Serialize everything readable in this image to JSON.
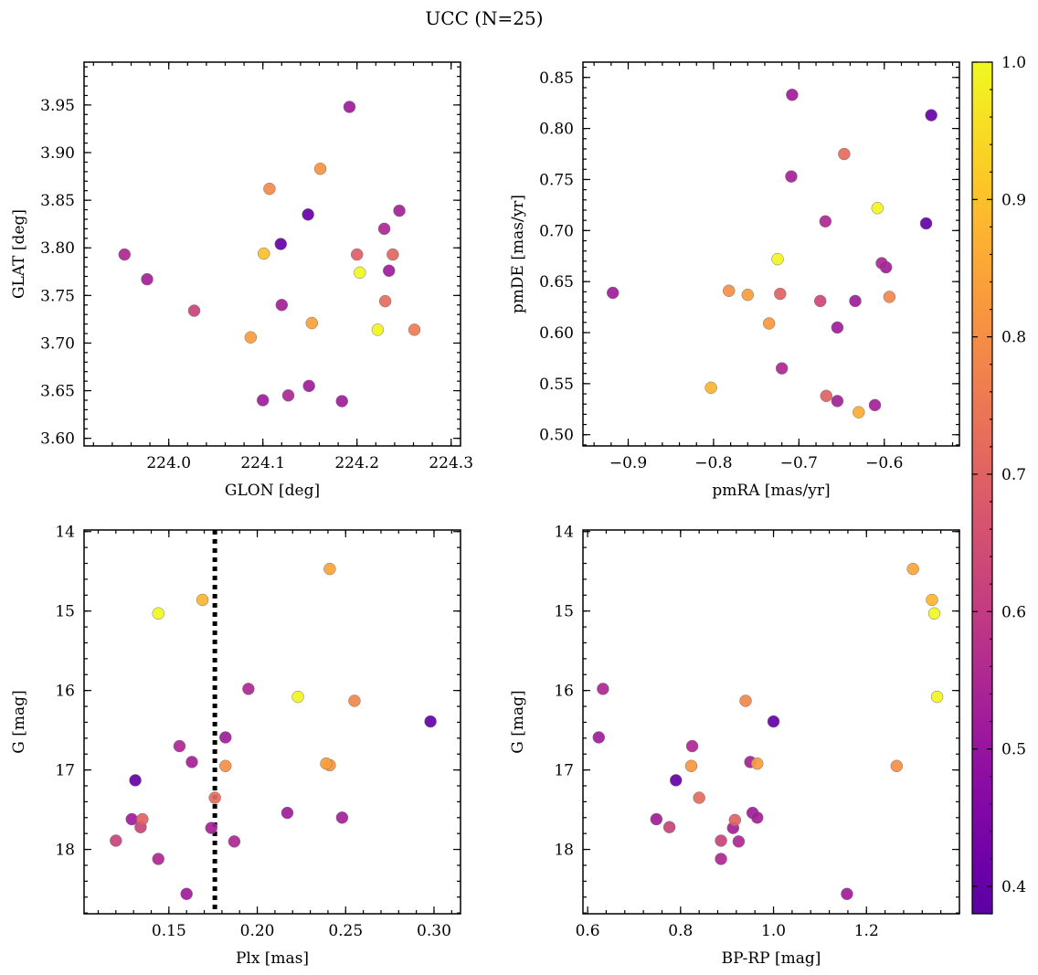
{
  "title": "UCC (N=25)",
  "colorbar": {
    "range": [
      0.38,
      1.0
    ],
    "ticks": [
      0.4,
      0.5,
      0.6,
      0.7,
      0.8,
      0.9,
      1.0
    ],
    "tick_labels": [
      "0.4",
      "0.5",
      "0.6",
      "0.7",
      "0.8",
      "0.9",
      "1.0"
    ],
    "colormap": "plasma"
  },
  "chart_data": [
    {
      "type": "scatter",
      "panel": "top-left",
      "xlabel": "GLON [deg]",
      "ylabel": "GLAT [deg]",
      "xlim": [
        223.91,
        224.31
      ],
      "ylim": [
        3.592,
        3.995
      ],
      "inverted_y": false,
      "xticks": [
        224.0,
        224.1,
        224.2,
        224.3
      ],
      "xtick_labels": [
        "224.0",
        "224.1",
        "224.2",
        "224.3"
      ],
      "yticks": [
        3.6,
        3.65,
        3.7,
        3.75,
        3.8,
        3.85,
        3.9,
        3.95
      ],
      "ytick_labels": [
        "3.60",
        "3.65",
        "3.70",
        "3.75",
        "3.80",
        "3.85",
        "3.90",
        "3.95"
      ],
      "points": [
        {
          "x": 223.953,
          "y": 3.793,
          "c": 0.55
        },
        {
          "x": 223.977,
          "y": 3.767,
          "c": 0.53
        },
        {
          "x": 224.027,
          "y": 3.734,
          "c": 0.62
        },
        {
          "x": 224.087,
          "y": 3.706,
          "c": 0.83
        },
        {
          "x": 224.101,
          "y": 3.794,
          "c": 0.9
        },
        {
          "x": 224.1,
          "y": 3.64,
          "c": 0.52
        },
        {
          "x": 224.107,
          "y": 3.862,
          "c": 0.79
        },
        {
          "x": 224.119,
          "y": 3.804,
          "c": 0.4
        },
        {
          "x": 224.12,
          "y": 3.74,
          "c": 0.53
        },
        {
          "x": 224.127,
          "y": 3.645,
          "c": 0.55
        },
        {
          "x": 224.148,
          "y": 3.835,
          "c": 0.4
        },
        {
          "x": 224.149,
          "y": 3.655,
          "c": 0.52
        },
        {
          "x": 224.152,
          "y": 3.721,
          "c": 0.84
        },
        {
          "x": 224.161,
          "y": 3.883,
          "c": 0.81
        },
        {
          "x": 224.184,
          "y": 3.639,
          "c": 0.52
        },
        {
          "x": 224.192,
          "y": 3.948,
          "c": 0.52
        },
        {
          "x": 224.2,
          "y": 3.793,
          "c": 0.69
        },
        {
          "x": 224.203,
          "y": 3.774,
          "c": 1.0
        },
        {
          "x": 224.222,
          "y": 3.714,
          "c": 0.99
        },
        {
          "x": 224.229,
          "y": 3.82,
          "c": 0.55
        },
        {
          "x": 224.23,
          "y": 3.744,
          "c": 0.72
        },
        {
          "x": 224.234,
          "y": 3.776,
          "c": 0.52
        },
        {
          "x": 224.238,
          "y": 3.793,
          "c": 0.71
        },
        {
          "x": 224.245,
          "y": 3.839,
          "c": 0.53
        },
        {
          "x": 224.261,
          "y": 3.714,
          "c": 0.76
        }
      ]
    },
    {
      "type": "scatter",
      "panel": "top-right",
      "xlabel": "pmRA [mas/yr]",
      "ylabel": "pmDE [mas/yr]",
      "xlim": [
        -0.953,
        -0.512
      ],
      "ylim": [
        0.489,
        0.865
      ],
      "inverted_y": false,
      "xticks": [
        -0.9,
        -0.8,
        -0.7,
        -0.6
      ],
      "xtick_labels": [
        "−0.9",
        "−0.8",
        "−0.7",
        "−0.6"
      ],
      "yticks": [
        0.5,
        0.55,
        0.6,
        0.65,
        0.7,
        0.75,
        0.8,
        0.85
      ],
      "ytick_labels": [
        "0.50",
        "0.55",
        "0.60",
        "0.65",
        "0.70",
        "0.75",
        "0.80",
        "0.85"
      ],
      "points": [
        {
          "x": -0.918,
          "y": 0.639,
          "c": 0.52
        },
        {
          "x": -0.803,
          "y": 0.546,
          "c": 0.88
        },
        {
          "x": -0.782,
          "y": 0.641,
          "c": 0.8
        },
        {
          "x": -0.76,
          "y": 0.637,
          "c": 0.83
        },
        {
          "x": -0.735,
          "y": 0.609,
          "c": 0.82
        },
        {
          "x": -0.725,
          "y": 0.672,
          "c": 0.99
        },
        {
          "x": -0.722,
          "y": 0.638,
          "c": 0.7
        },
        {
          "x": -0.72,
          "y": 0.565,
          "c": 0.55
        },
        {
          "x": -0.708,
          "y": 0.833,
          "c": 0.52
        },
        {
          "x": -0.709,
          "y": 0.753,
          "c": 0.53
        },
        {
          "x": -0.675,
          "y": 0.631,
          "c": 0.63
        },
        {
          "x": -0.669,
          "y": 0.709,
          "c": 0.55
        },
        {
          "x": -0.668,
          "y": 0.538,
          "c": 0.7
        },
        {
          "x": -0.655,
          "y": 0.605,
          "c": 0.52
        },
        {
          "x": -0.655,
          "y": 0.533,
          "c": 0.53
        },
        {
          "x": -0.647,
          "y": 0.775,
          "c": 0.72
        },
        {
          "x": -0.634,
          "y": 0.631,
          "c": 0.52
        },
        {
          "x": -0.63,
          "y": 0.522,
          "c": 0.86
        },
        {
          "x": -0.611,
          "y": 0.529,
          "c": 0.53
        },
        {
          "x": -0.608,
          "y": 0.722,
          "c": 0.99
        },
        {
          "x": -0.603,
          "y": 0.668,
          "c": 0.55
        },
        {
          "x": -0.598,
          "y": 0.664,
          "c": 0.52
        },
        {
          "x": -0.594,
          "y": 0.635,
          "c": 0.78
        },
        {
          "x": -0.551,
          "y": 0.707,
          "c": 0.4
        },
        {
          "x": -0.545,
          "y": 0.813,
          "c": 0.4
        }
      ]
    },
    {
      "type": "scatter",
      "panel": "bottom-left",
      "xlabel": "Plx [mas]",
      "ylabel": "G [mag]",
      "xlim": [
        0.102,
        0.315
      ],
      "ylim": [
        13.98,
        18.81
      ],
      "inverted_y": true,
      "xticks": [
        0.15,
        0.2,
        0.25,
        0.3
      ],
      "xtick_labels": [
        "0.15",
        "0.20",
        "0.25",
        "0.30"
      ],
      "yticks": [
        14,
        15,
        16,
        17,
        18
      ],
      "ytick_labels": [
        "14",
        "15",
        "16",
        "17",
        "18"
      ],
      "vline": 0.176,
      "points": [
        {
          "x": 0.241,
          "y": 14.47,
          "c": 0.85
        },
        {
          "x": 0.169,
          "y": 14.86,
          "c": 0.88
        },
        {
          "x": 0.144,
          "y": 15.03,
          "c": 1.0
        },
        {
          "x": 0.195,
          "y": 15.98,
          "c": 0.55
        },
        {
          "x": 0.223,
          "y": 16.08,
          "c": 0.99
        },
        {
          "x": 0.255,
          "y": 16.13,
          "c": 0.78
        },
        {
          "x": 0.298,
          "y": 16.39,
          "c": 0.4
        },
        {
          "x": 0.182,
          "y": 16.59,
          "c": 0.52
        },
        {
          "x": 0.156,
          "y": 16.7,
          "c": 0.55
        },
        {
          "x": 0.163,
          "y": 16.9,
          "c": 0.53
        },
        {
          "x": 0.239,
          "y": 16.92,
          "c": 0.83
        },
        {
          "x": 0.241,
          "y": 16.94,
          "c": 0.82
        },
        {
          "x": 0.182,
          "y": 16.95,
          "c": 0.8
        },
        {
          "x": 0.131,
          "y": 17.13,
          "c": 0.4
        },
        {
          "x": 0.176,
          "y": 17.35,
          "c": 0.72
        },
        {
          "x": 0.217,
          "y": 17.54,
          "c": 0.52
        },
        {
          "x": 0.248,
          "y": 17.6,
          "c": 0.53
        },
        {
          "x": 0.129,
          "y": 17.62,
          "c": 0.52
        },
        {
          "x": 0.135,
          "y": 17.62,
          "c": 0.7
        },
        {
          "x": 0.134,
          "y": 17.72,
          "c": 0.62
        },
        {
          "x": 0.174,
          "y": 17.73,
          "c": 0.53
        },
        {
          "x": 0.12,
          "y": 17.89,
          "c": 0.62
        },
        {
          "x": 0.187,
          "y": 17.9,
          "c": 0.55
        },
        {
          "x": 0.144,
          "y": 18.12,
          "c": 0.55
        },
        {
          "x": 0.16,
          "y": 18.56,
          "c": 0.52
        }
      ]
    },
    {
      "type": "scatter",
      "panel": "bottom-right",
      "xlabel": "BP-RP [mag]",
      "ylabel": "G [mag]",
      "xlim": [
        0.59,
        1.4
      ],
      "ylim": [
        13.98,
        18.81
      ],
      "inverted_y": true,
      "xticks": [
        0.6,
        0.8,
        1.0,
        1.2
      ],
      "xtick_labels": [
        "0.6",
        "0.8",
        "1.0",
        "1.2"
      ],
      "yticks": [
        14,
        15,
        16,
        17,
        18
      ],
      "ytick_labels": [
        "14",
        "15",
        "16",
        "17",
        "18"
      ],
      "points": [
        {
          "x": 1.3,
          "y": 14.47,
          "c": 0.85
        },
        {
          "x": 1.341,
          "y": 14.86,
          "c": 0.88
        },
        {
          "x": 1.346,
          "y": 15.03,
          "c": 1.0
        },
        {
          "x": 0.633,
          "y": 15.98,
          "c": 0.55
        },
        {
          "x": 1.352,
          "y": 16.08,
          "c": 0.99
        },
        {
          "x": 0.94,
          "y": 16.13,
          "c": 0.78
        },
        {
          "x": 1.0,
          "y": 16.39,
          "c": 0.4
        },
        {
          "x": 0.624,
          "y": 16.59,
          "c": 0.52
        },
        {
          "x": 0.825,
          "y": 16.7,
          "c": 0.55
        },
        {
          "x": 0.95,
          "y": 16.9,
          "c": 0.53
        },
        {
          "x": 0.965,
          "y": 16.92,
          "c": 0.83
        },
        {
          "x": 0.823,
          "y": 16.95,
          "c": 0.82
        },
        {
          "x": 1.265,
          "y": 16.95,
          "c": 0.8
        },
        {
          "x": 0.79,
          "y": 17.13,
          "c": 0.4
        },
        {
          "x": 0.84,
          "y": 17.35,
          "c": 0.72
        },
        {
          "x": 0.955,
          "y": 17.54,
          "c": 0.52
        },
        {
          "x": 0.965,
          "y": 17.6,
          "c": 0.53
        },
        {
          "x": 0.748,
          "y": 17.62,
          "c": 0.52
        },
        {
          "x": 0.917,
          "y": 17.63,
          "c": 0.7
        },
        {
          "x": 0.776,
          "y": 17.72,
          "c": 0.62
        },
        {
          "x": 0.913,
          "y": 17.73,
          "c": 0.53
        },
        {
          "x": 0.887,
          "y": 17.89,
          "c": 0.62
        },
        {
          "x": 0.925,
          "y": 17.9,
          "c": 0.55
        },
        {
          "x": 0.887,
          "y": 18.12,
          "c": 0.55
        },
        {
          "x": 1.158,
          "y": 18.56,
          "c": 0.52
        }
      ]
    }
  ]
}
